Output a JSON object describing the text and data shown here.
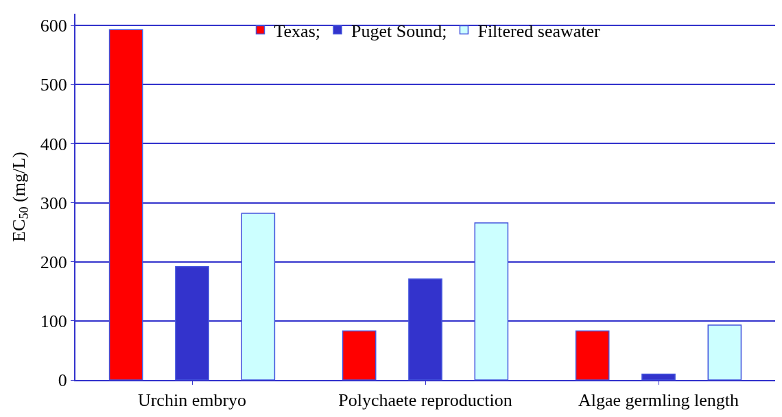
{
  "chart_data": {
    "type": "bar",
    "ylabel": "EC$_{50}$ (mg/L)",
    "categories": [
      "Urchin embryo",
      "Polychaete reproduction",
      "Algae germling length"
    ],
    "series": [
      {
        "name": "Texas;",
        "color": "#ff0000",
        "values": [
          593,
          83,
          83
        ]
      },
      {
        "name": "Puget Sound;",
        "color": "#3333cc",
        "values": [
          192,
          171,
          10
        ]
      },
      {
        "name": "Filtered seawater",
        "color": "#ccffff",
        "values": [
          282,
          266,
          93
        ]
      }
    ],
    "ylim": [
      0,
      620
    ],
    "yticks": [
      0,
      100,
      200,
      300,
      400,
      500,
      600
    ],
    "grid": "y",
    "legend": "top"
  }
}
